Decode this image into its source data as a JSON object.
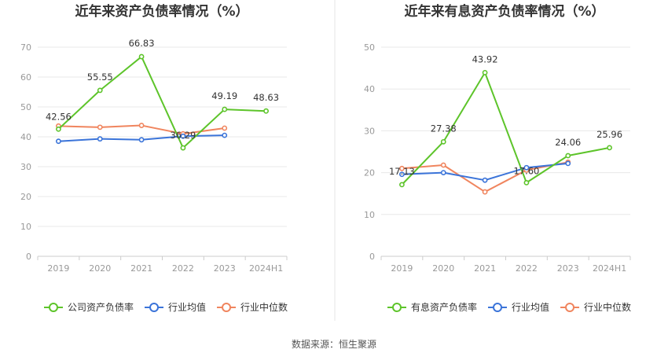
{
  "colors": {
    "primary": "#5dc42a",
    "industry_avg": "#3b74d9",
    "industry_median": "#f0855e",
    "grid": "#e8e8e8",
    "axis": "#cccccc",
    "divider": "#e6e6e6"
  },
  "legend_labels": [
    "公司资产负债率",
    "有息资产负债率",
    "行业均值",
    "行业中位数"
  ],
  "source_text": "数据来源：恒生聚源",
  "chart_data": [
    {
      "type": "line",
      "title": "近年来资产负债率情况（%）",
      "categories": [
        "2019",
        "2020",
        "2021",
        "2022",
        "2023",
        "2024H1"
      ],
      "ylim": [
        0,
        70
      ],
      "yticks": [
        0,
        10,
        20,
        30,
        40,
        50,
        60,
        70
      ],
      "series": [
        {
          "name": "公司资产负债率",
          "colorKey": "primary",
          "values": [
            42.56,
            55.55,
            66.83,
            36.29,
            49.19,
            48.63
          ],
          "labels": [
            "42.56",
            "55.55",
            "66.83",
            "36.29",
            "49.19",
            "48.63"
          ]
        },
        {
          "name": "行业均值",
          "colorKey": "industry_avg",
          "values": [
            38.5,
            39.3,
            39.0,
            40.2,
            40.5,
            null
          ]
        },
        {
          "name": "行业中位数",
          "colorKey": "industry_median",
          "values": [
            43.6,
            43.2,
            43.8,
            41.0,
            42.9,
            null
          ]
        }
      ]
    },
    {
      "type": "line",
      "title": "近年来有息资产负债率情况（%）",
      "categories": [
        "2019",
        "2020",
        "2021",
        "2022",
        "2023",
        "2024H1"
      ],
      "ylim": [
        0,
        50
      ],
      "yticks": [
        0,
        10,
        20,
        30,
        40,
        50
      ],
      "series": [
        {
          "name": "有息资产负债率",
          "colorKey": "primary",
          "values": [
            17.13,
            27.38,
            43.92,
            17.6,
            24.06,
            25.96
          ],
          "labels": [
            "17.13",
            "27.38",
            "43.92",
            "17.60",
            "24.06",
            "25.96"
          ]
        },
        {
          "name": "行业均值",
          "colorKey": "industry_avg",
          "values": [
            19.6,
            20.0,
            18.2,
            21.2,
            22.2,
            null
          ]
        },
        {
          "name": "行业中位数",
          "colorKey": "industry_median",
          "values": [
            21.0,
            21.8,
            15.4,
            20.6,
            22.5,
            null
          ]
        }
      ]
    }
  ]
}
